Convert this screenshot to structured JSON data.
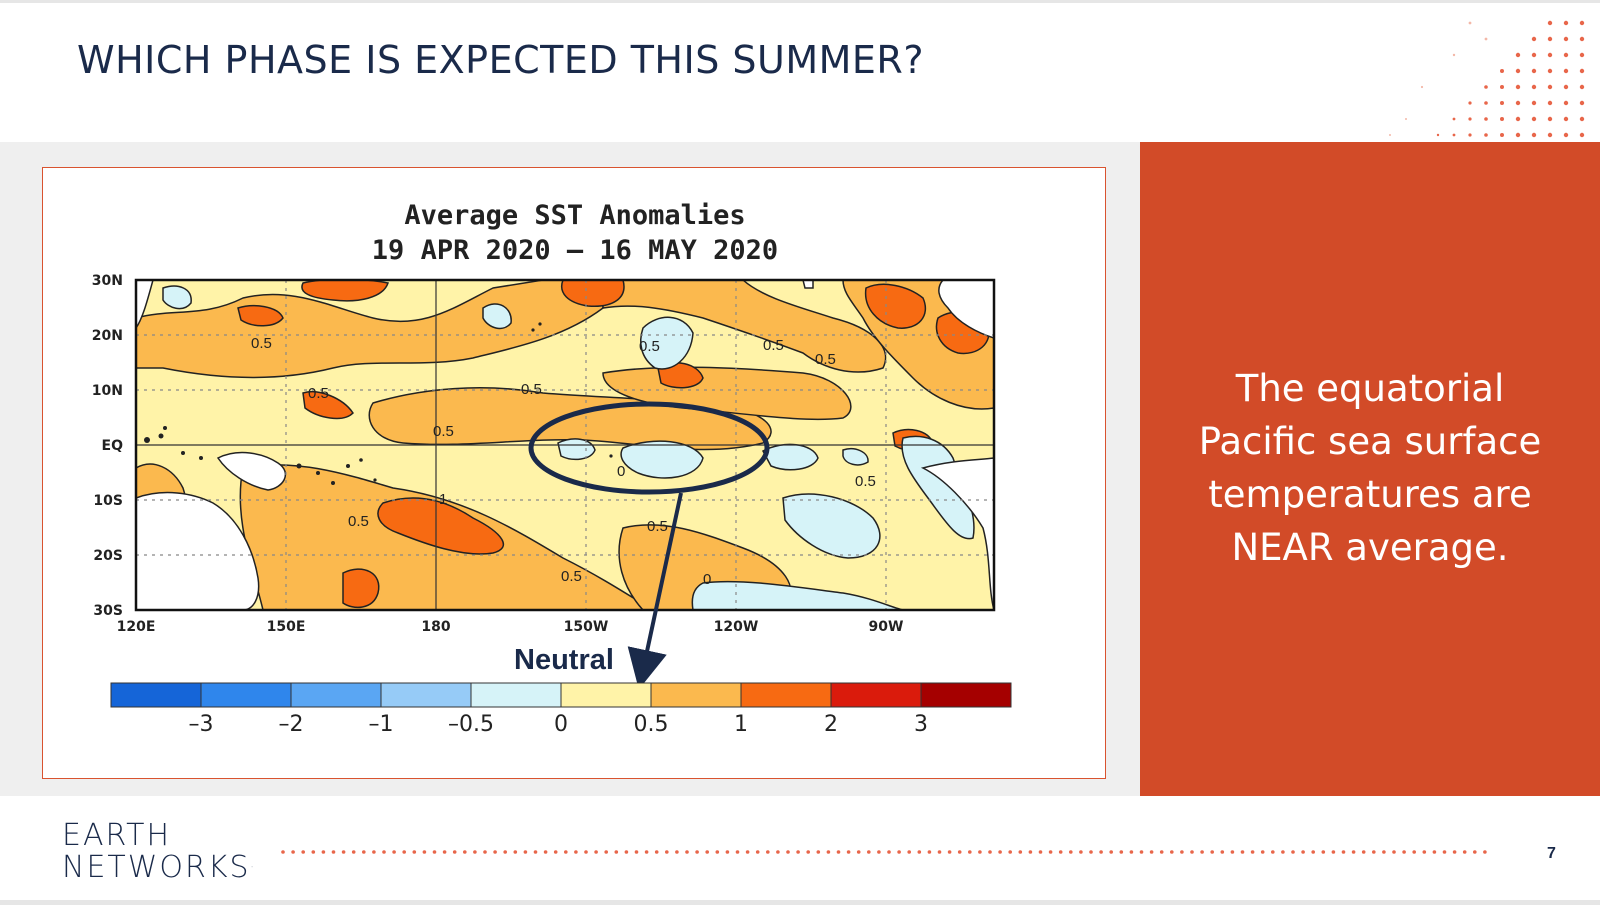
{
  "slide": {
    "title": "WHICH PHASE IS EXPECTED THIS SUMMER?",
    "page_number": "7",
    "accent_color": "#d24b28",
    "title_color": "#1a2a4a"
  },
  "map": {
    "title_line1": "Average SST Anomalies",
    "title_line2": "19 APR 2020 – 16 MAY 2020",
    "lat_labels": [
      "30N",
      "20N",
      "10N",
      "EQ",
      "10S",
      "20S",
      "30S"
    ],
    "lon_labels": [
      "120E",
      "150E",
      "180",
      "150W",
      "120W",
      "90W"
    ],
    "contour_labels": [
      "0.5",
      "0.5",
      "0.5",
      "0.5",
      "0.5",
      "0.5",
      "0.5",
      "0.5",
      "0.5",
      "0.5",
      "0.5",
      "1",
      "0",
      "0"
    ],
    "annotation": "Neutral",
    "colorbar": {
      "colors": [
        "#1565d8",
        "#2f86ec",
        "#5aa6f3",
        "#96cbf7",
        "#d6f3f8",
        "#fff3a8",
        "#fbb94e",
        "#f76a12",
        "#da1b0c",
        "#a50000"
      ],
      "tick_labels": [
        "–3",
        "–2",
        "–1",
        "–0.5",
        "0",
        "0.5",
        "1",
        "2",
        "3"
      ]
    }
  },
  "side_panel": {
    "lines": [
      "The equatorial",
      "Pacific sea surface",
      "temperatures are",
      "NEAR average."
    ]
  },
  "footer": {
    "logo_line1": "EARTH",
    "logo_line2": "NETWORKS"
  }
}
